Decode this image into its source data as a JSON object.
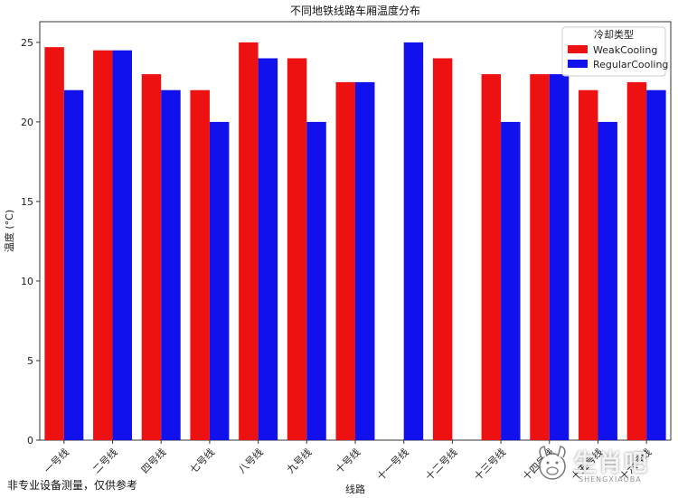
{
  "chart_data": {
    "type": "bar",
    "title": "不同地铁线路车厢温度分布",
    "xlabel": "线路",
    "ylabel": "温度 (°C)",
    "ylim": [
      0,
      26.3
    ],
    "yticks": [
      0,
      5,
      10,
      15,
      20,
      25
    ],
    "grid": false,
    "legend_title": "冷却类型",
    "legend_position": "top-right",
    "categories": [
      "一号线",
      "二号线",
      "四号线",
      "七号线",
      "八号线",
      "九号线",
      "十号线",
      "十一号线",
      "十二号线",
      "十三号线",
      "十四号线",
      "十五号线",
      "十六号线"
    ],
    "series": [
      {
        "name": "WeakCooling",
        "color": "#ee1111",
        "values": [
          24.7,
          24.5,
          23,
          22,
          25,
          24,
          22.5,
          null,
          24,
          23,
          23,
          22,
          22.5
        ]
      },
      {
        "name": "RegularCooling",
        "color": "#1111ee",
        "values": [
          22,
          24.5,
          22,
          20,
          24,
          20,
          22.5,
          25,
          null,
          20,
          23,
          20,
          22
        ]
      }
    ]
  },
  "note": "非专业设备测量，仅供参考",
  "watermark": {
    "text": "生肖吧",
    "sub": "SHENGXIAOBA"
  }
}
